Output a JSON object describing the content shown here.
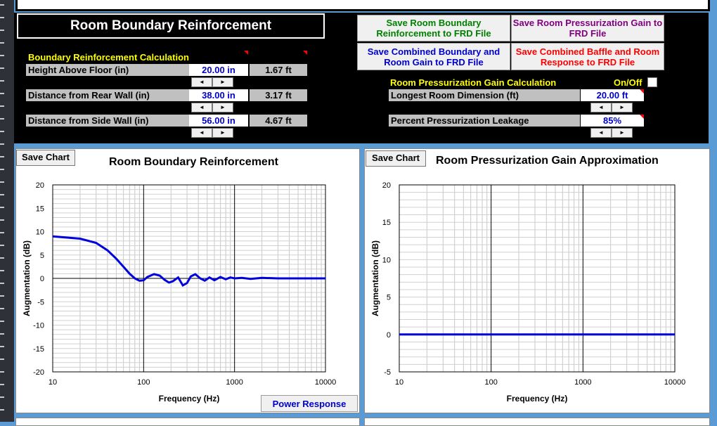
{
  "header": {
    "title": "Room Boundary Reinforcement"
  },
  "buttons": {
    "save_boundary_frd": "Save Room Boundary Reinforcement to FRD File",
    "save_pressurization_frd": "Save Room Pressurization Gain to FRD File",
    "save_combined_boundary_room": "Save Combined Boundary and Room Gain to FRD File",
    "save_combined_baffle_room": "Save Combined Baffle and Room Response to FRD File",
    "power_response": "Power Response"
  },
  "colors": {
    "save_boundary_frd": "#008000",
    "save_pressurization_frd": "#800080",
    "save_combined_boundary_room": "#0000cc",
    "save_combined_baffle_room": "#ff0000"
  },
  "boundary": {
    "section_title": "Boundary Reinforcement Calculation",
    "rows": [
      {
        "label": "Height Above Floor (in)",
        "value": "20.00 in",
        "feet": "1.67 ft"
      },
      {
        "label": "Distance from Rear Wall (in)",
        "value": "38.00 in",
        "feet": "3.17 ft"
      },
      {
        "label": "Distance from Side Wall (in)",
        "value": "56.00 in",
        "feet": "4.67 ft"
      }
    ]
  },
  "pressurization": {
    "section_title": "Room Pressurization Gain Calculation",
    "onoff_label": "On/Off",
    "rows": [
      {
        "label": "Longest Room Dimension (ft)",
        "value": "20.00 ft"
      },
      {
        "label": "Percent Pressurization Leakage",
        "value": "85%"
      }
    ]
  },
  "spinner": {
    "left": "◄",
    "right": "►"
  },
  "chart_data": [
    {
      "type": "line",
      "title": "Room Boundary Reinforcement",
      "save_label": "Save Chart",
      "xlabel": "Frequency (Hz)",
      "ylabel": "Augmentation (dB)",
      "xscale": "log",
      "xlim": [
        10,
        10000
      ],
      "ylim": [
        -20,
        20
      ],
      "xticks": [
        "10",
        "100",
        "1000",
        "10000"
      ],
      "yticks": [
        "20",
        "15",
        "10",
        "5",
        "0",
        "-5",
        "-10",
        "-15",
        "-20"
      ],
      "grid": true,
      "series_color": "#0000dd",
      "x": [
        10,
        20,
        30,
        40,
        50,
        60,
        70,
        80,
        90,
        100,
        110,
        130,
        150,
        170,
        190,
        210,
        240,
        270,
        300,
        330,
        370,
        420,
        470,
        530,
        600,
        700,
        800,
        900,
        1000,
        1200,
        1500,
        2000,
        3000,
        5000,
        10000
      ],
      "y": [
        9.0,
        8.5,
        7.6,
        6.0,
        4.2,
        2.5,
        1.0,
        0.0,
        -0.5,
        -0.4,
        0.3,
        0.9,
        0.6,
        -0.3,
        -0.9,
        -0.6,
        0.2,
        -1.5,
        -1.0,
        0.4,
        0.9,
        0.0,
        -0.5,
        0.2,
        -0.4,
        0.3,
        -0.2,
        0.2,
        0.0,
        0.1,
        -0.1,
        0.1,
        0.0,
        0.0,
        0.0
      ]
    },
    {
      "type": "line",
      "title": "Room Pressurization Gain Approximation",
      "save_label": "Save Chart",
      "xlabel": "Frequency (Hz)",
      "ylabel": "Augmentation (dB)",
      "xscale": "log",
      "xlim": [
        10,
        10000
      ],
      "ylim": [
        -5,
        20
      ],
      "xticks": [
        "10",
        "100",
        "1000",
        "10000"
      ],
      "yticks": [
        "20",
        "15",
        "10",
        "5",
        "0",
        "-5"
      ],
      "grid": true,
      "series_color": "#0000dd",
      "x": [
        10,
        10000
      ],
      "y": [
        0,
        0
      ]
    }
  ]
}
